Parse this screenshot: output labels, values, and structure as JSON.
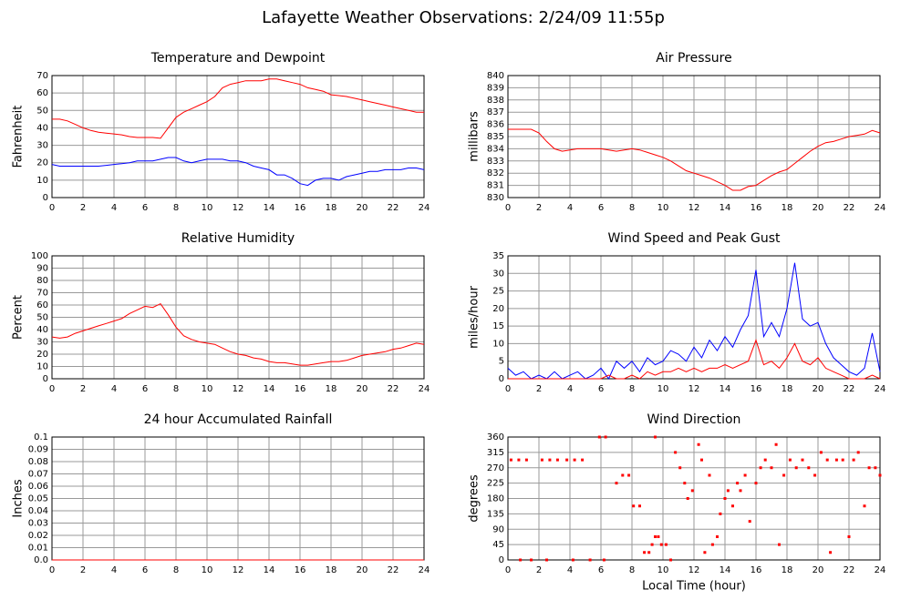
{
  "title": "Lafayette Weather Observations: 2/24/09 11:55p",
  "chart_data": [
    {
      "type": "line",
      "title": "Temperature and Dewpoint",
      "ylabel": "Fahrenheit",
      "x": [
        0,
        0.5,
        1,
        1.5,
        2,
        2.5,
        3,
        3.5,
        4,
        4.5,
        5,
        5.5,
        6,
        6.5,
        7,
        7.5,
        8,
        8.5,
        9,
        9.5,
        10,
        10.5,
        11,
        11.5,
        12,
        12.5,
        13,
        13.5,
        14,
        14.5,
        15,
        15.5,
        16,
        16.5,
        17,
        17.5,
        18,
        18.5,
        19,
        19.5,
        20,
        20.5,
        21,
        21.5,
        22,
        22.5,
        23,
        23.5,
        24
      ],
      "series": [
        {
          "color": "#ff0000",
          "values": [
            45,
            45,
            44,
            42,
            40,
            38.5,
            37.5,
            37,
            36.5,
            36,
            35,
            34.5,
            34.5,
            34.5,
            34,
            40,
            46,
            49,
            51,
            53,
            55,
            58,
            63,
            65,
            66,
            67,
            67,
            67,
            68,
            68,
            67,
            66,
            65,
            63,
            62,
            61,
            59,
            58.5,
            58,
            57,
            56,
            55,
            54,
            53,
            52,
            51,
            50,
            49,
            49
          ]
        },
        {
          "color": "#0000ff",
          "values": [
            19,
            18,
            18,
            18,
            18,
            18,
            18,
            18.5,
            19,
            19.5,
            20,
            21,
            21,
            21,
            22,
            23,
            23,
            21,
            20,
            21,
            22,
            22,
            22,
            21,
            21,
            20,
            18,
            17,
            16,
            13,
            13,
            11,
            8,
            7,
            10,
            11,
            11,
            10,
            12,
            13,
            14,
            15,
            15,
            16,
            16,
            16,
            17,
            17,
            16
          ]
        }
      ],
      "xlim": [
        0,
        24
      ],
      "xticks": [
        0,
        2,
        4,
        6,
        8,
        10,
        12,
        14,
        16,
        18,
        20,
        22,
        24
      ],
      "ylim": [
        0,
        70
      ],
      "yticks": [
        0,
        10,
        20,
        30,
        40,
        50,
        60,
        70
      ],
      "grid": true
    },
    {
      "type": "line",
      "title": "Air Pressure",
      "ylabel": "millibars",
      "x": [
        0,
        0.5,
        1,
        1.5,
        2,
        2.5,
        3,
        3.5,
        4,
        4.5,
        5,
        5.5,
        6,
        6.5,
        7,
        7.5,
        8,
        8.5,
        9,
        9.5,
        10,
        10.5,
        11,
        11.5,
        12,
        12.5,
        13,
        13.5,
        14,
        14.5,
        15,
        15.5,
        16,
        16.5,
        17,
        17.5,
        18,
        18.5,
        19,
        19.5,
        20,
        20.5,
        21,
        21.5,
        22,
        22.5,
        23,
        23.5,
        24
      ],
      "series": [
        {
          "color": "#ff0000",
          "values": [
            835.6,
            835.6,
            835.6,
            835.6,
            835.3,
            834.6,
            834.0,
            833.8,
            833.9,
            834.0,
            834.0,
            834.0,
            834.0,
            833.9,
            833.8,
            833.9,
            834.0,
            833.9,
            833.7,
            833.5,
            833.3,
            833.0,
            832.6,
            832.2,
            832.0,
            831.8,
            831.6,
            831.3,
            831.0,
            830.6,
            830.6,
            830.9,
            831.0,
            831.4,
            831.8,
            832.1,
            832.3,
            832.8,
            833.3,
            833.8,
            834.2,
            834.5,
            834.6,
            834.8,
            835.0,
            835.1,
            835.2,
            835.5,
            835.3
          ]
        }
      ],
      "xlim": [
        0,
        24
      ],
      "xticks": [
        0,
        2,
        4,
        6,
        8,
        10,
        12,
        14,
        16,
        18,
        20,
        22,
        24
      ],
      "ylim": [
        830,
        840
      ],
      "yticks": [
        830,
        831,
        832,
        833,
        834,
        835,
        836,
        837,
        838,
        839,
        840
      ],
      "grid": true
    },
    {
      "type": "line",
      "title": "Relative Humidity",
      "ylabel": "Percent",
      "x": [
        0,
        0.5,
        1,
        1.5,
        2,
        2.5,
        3,
        3.5,
        4,
        4.5,
        5,
        5.5,
        6,
        6.5,
        7,
        7.5,
        8,
        8.5,
        9,
        9.5,
        10,
        10.5,
        11,
        11.5,
        12,
        12.5,
        13,
        13.5,
        14,
        14.5,
        15,
        15.5,
        16,
        16.5,
        17,
        17.5,
        18,
        18.5,
        19,
        19.5,
        20,
        20.5,
        21,
        21.5,
        22,
        22.5,
        23,
        23.5,
        24
      ],
      "series": [
        {
          "color": "#ff0000",
          "values": [
            34,
            33,
            34,
            37,
            39,
            41,
            43,
            45,
            47,
            49,
            53,
            56,
            59,
            58,
            61,
            52,
            42,
            35,
            32,
            30,
            29,
            28,
            25,
            22,
            20,
            19,
            17,
            16,
            14,
            13,
            13,
            12,
            11,
            11,
            12,
            13,
            14,
            14,
            15,
            17,
            19,
            20,
            21,
            22,
            24,
            25,
            27,
            29,
            28
          ]
        }
      ],
      "xlim": [
        0,
        24
      ],
      "xticks": [
        0,
        2,
        4,
        6,
        8,
        10,
        12,
        14,
        16,
        18,
        20,
        22,
        24
      ],
      "ylim": [
        0,
        100
      ],
      "yticks": [
        0,
        10,
        20,
        30,
        40,
        50,
        60,
        70,
        80,
        90,
        100
      ],
      "grid": true
    },
    {
      "type": "line",
      "title": "Wind Speed and Peak Gust",
      "ylabel": "miles/hour",
      "x": [
        0,
        0.5,
        1,
        1.5,
        2,
        2.5,
        3,
        3.5,
        4,
        4.5,
        5,
        5.5,
        6,
        6.5,
        7,
        7.5,
        8,
        8.5,
        9,
        9.5,
        10,
        10.5,
        11,
        11.5,
        12,
        12.5,
        13,
        13.5,
        14,
        14.5,
        15,
        15.5,
        16,
        16.5,
        17,
        17.5,
        18,
        18.5,
        19,
        19.5,
        20,
        20.5,
        21,
        21.5,
        22,
        22.5,
        23,
        23.5,
        24
      ],
      "series": [
        {
          "color": "#0000ff",
          "values": [
            3,
            1,
            2,
            0,
            1,
            0,
            2,
            0,
            1,
            2,
            0,
            1,
            3,
            0,
            5,
            3,
            5,
            2,
            6,
            4,
            5,
            8,
            7,
            5,
            9,
            6,
            11,
            8,
            12,
            9,
            14,
            18,
            31,
            12,
            16,
            12,
            20,
            33,
            17,
            15,
            16,
            10,
            6,
            4,
            2,
            1,
            3,
            13,
            2
          ]
        },
        {
          "color": "#ff0000",
          "values": [
            0,
            0,
            0,
            0,
            0,
            0,
            0,
            0,
            0,
            0,
            0,
            0,
            0,
            1,
            0,
            0,
            1,
            0,
            2,
            1,
            2,
            2,
            3,
            2,
            3,
            2,
            3,
            3,
            4,
            3,
            4,
            5,
            11,
            4,
            5,
            3,
            6,
            10,
            5,
            4,
            6,
            3,
            2,
            1,
            0,
            0,
            0,
            1,
            0
          ]
        }
      ],
      "xlim": [
        0,
        24
      ],
      "xticks": [
        0,
        2,
        4,
        6,
        8,
        10,
        12,
        14,
        16,
        18,
        20,
        22,
        24
      ],
      "ylim": [
        0,
        35
      ],
      "yticks": [
        0,
        5,
        10,
        15,
        20,
        25,
        30,
        35
      ],
      "grid": true
    },
    {
      "type": "line",
      "title": "24 hour Accumulated Rainfall",
      "ylabel": "Inches",
      "x": [
        0,
        1,
        2,
        3,
        4,
        5,
        6,
        7,
        8,
        9,
        10,
        11,
        12,
        13,
        14,
        15,
        16,
        17,
        18,
        19,
        20,
        21,
        22,
        23,
        24
      ],
      "series": [
        {
          "color": "#ff0000",
          "values": [
            0,
            0,
            0,
            0,
            0,
            0,
            0,
            0,
            0,
            0,
            0,
            0,
            0,
            0,
            0,
            0,
            0,
            0,
            0,
            0,
            0,
            0,
            0,
            0,
            0
          ]
        }
      ],
      "xlim": [
        0,
        24
      ],
      "xticks": [
        0,
        2,
        4,
        6,
        8,
        10,
        12,
        14,
        16,
        18,
        20,
        22,
        24
      ],
      "ylim": [
        0,
        0.1
      ],
      "yticks": [
        {
          "value": 0,
          "label": "0.0"
        },
        0.01,
        0.02,
        0.03,
        0.04,
        0.05,
        0.06,
        0.07,
        0.08,
        0.09,
        0.1
      ],
      "grid": true
    },
    {
      "type": "scatter",
      "title": "Wind Direction",
      "ylabel": "degrees",
      "xlabel": "Local Time (hour)",
      "color": "#ff0000",
      "x": [
        0.2,
        0.7,
        1.2,
        0.8,
        1.5,
        2.2,
        2.7,
        3.2,
        2.5,
        3.8,
        4.3,
        4.8,
        4.2,
        5.3,
        5.9,
        6.3,
        6.2,
        7,
        7.4,
        7.8,
        8.1,
        8.5,
        8.8,
        9.1,
        9.3,
        9.5,
        9.7,
        9.9,
        9.5,
        10.2,
        10.5,
        10.8,
        11.1,
        11.4,
        11.6,
        11.9,
        12.3,
        12.5,
        12.7,
        13,
        13.2,
        13.5,
        13.7,
        14,
        14.2,
        14.5,
        14.8,
        15,
        15.3,
        15.6,
        16,
        16.3,
        16.6,
        17,
        17.3,
        17.5,
        17.8,
        18.2,
        18.6,
        19,
        19.4,
        19.8,
        20.2,
        20.6,
        20.8,
        21.2,
        21.6,
        22,
        22.3,
        22.6,
        23,
        23.3,
        23.7,
        24
      ],
      "values": [
        293,
        293,
        293,
        0,
        0,
        293,
        293,
        293,
        0,
        293,
        293,
        293,
        0,
        0,
        360,
        360,
        0,
        225,
        248,
        248,
        158,
        158,
        22,
        22,
        45,
        68,
        68,
        45,
        360,
        45,
        0,
        315,
        270,
        225,
        180,
        203,
        338,
        293,
        22,
        248,
        45,
        68,
        135,
        180,
        203,
        158,
        225,
        203,
        248,
        113,
        225,
        270,
        293,
        270,
        338,
        45,
        248,
        293,
        270,
        293,
        270,
        248,
        315,
        293,
        22,
        293,
        293,
        68,
        293,
        315,
        158,
        270,
        270,
        248
      ],
      "xlim": [
        0,
        24
      ],
      "xticks": [
        0,
        2,
        4,
        6,
        8,
        10,
        12,
        14,
        16,
        18,
        20,
        22,
        24
      ],
      "ylim": [
        0,
        360
      ],
      "yticks": [
        0,
        45,
        90,
        135,
        180,
        225,
        270,
        315,
        360
      ],
      "grid": true
    }
  ]
}
